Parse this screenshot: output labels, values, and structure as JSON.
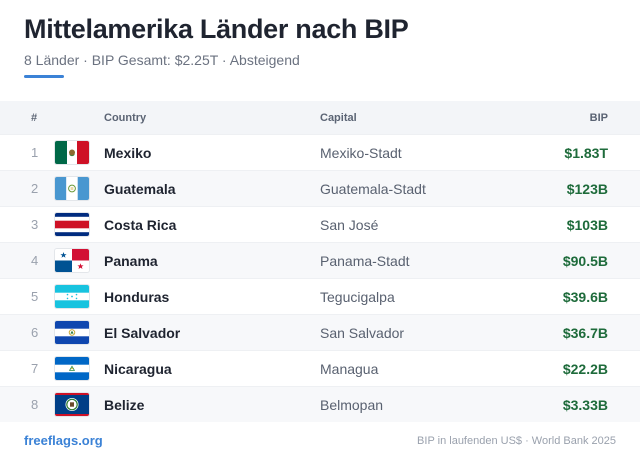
{
  "title": "Mittelamerika Länder nach BIP",
  "subtitle": "8 Länder · BIP Gesamt: $2.25T · Absteigend",
  "colors": {
    "accent": "#3b82d6",
    "value": "#1e6b3b"
  },
  "table": {
    "headers": {
      "num": "#",
      "country": "Country",
      "capital": "Capital",
      "bip": "BIP"
    },
    "rows": [
      {
        "rank": "1",
        "flag": "flag-mexico-icon",
        "country": "Mexiko",
        "capital": "Mexiko-Stadt",
        "bip": "$1.83T"
      },
      {
        "rank": "2",
        "flag": "flag-guatemala-icon",
        "country": "Guatemala",
        "capital": "Guatemala-Stadt",
        "bip": "$123B"
      },
      {
        "rank": "3",
        "flag": "flag-costa-rica-icon",
        "country": "Costa Rica",
        "capital": "San José",
        "bip": "$103B"
      },
      {
        "rank": "4",
        "flag": "flag-panama-icon",
        "country": "Panama",
        "capital": "Panama-Stadt",
        "bip": "$90.5B"
      },
      {
        "rank": "5",
        "flag": "flag-honduras-icon",
        "country": "Honduras",
        "capital": "Tegucigalpa",
        "bip": "$39.6B"
      },
      {
        "rank": "6",
        "flag": "flag-el-salvador-icon",
        "country": "El Salvador",
        "capital": "San Salvador",
        "bip": "$36.7B"
      },
      {
        "rank": "7",
        "flag": "flag-nicaragua-icon",
        "country": "Nicaragua",
        "capital": "Managua",
        "bip": "$22.2B"
      },
      {
        "rank": "8",
        "flag": "flag-belize-icon",
        "country": "Belize",
        "capital": "Belmopan",
        "bip": "$3.33B"
      }
    ]
  },
  "footer": {
    "brand": "freeflags.org",
    "source": "BIP in laufenden US$ · World Bank 2025"
  }
}
